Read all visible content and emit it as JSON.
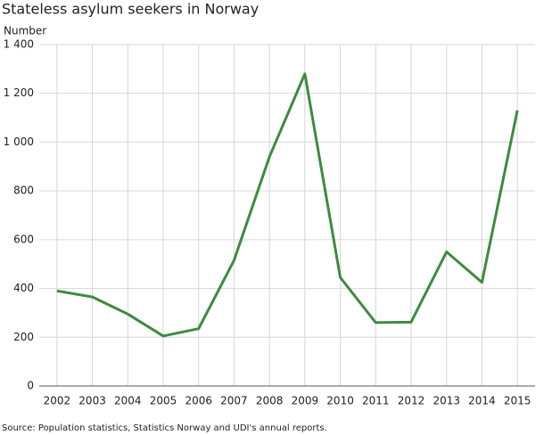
{
  "chart_data": {
    "type": "line",
    "title": "Stateless asylum seekers in Norway",
    "y_label": "Number",
    "source": "Source: Population statistics, Statistics Norway and UDI's annual reports.",
    "categories": [
      "2002",
      "2003",
      "2004",
      "2005",
      "2006",
      "2007",
      "2008",
      "2009",
      "2010",
      "2011",
      "2012",
      "2013",
      "2014",
      "2015"
    ],
    "values": [
      390,
      365,
      295,
      205,
      235,
      515,
      940,
      1280,
      445,
      260,
      262,
      550,
      425,
      1130
    ],
    "color": "#3d8b40",
    "ylim": [
      0,
      1400
    ],
    "yticks": [
      0,
      200,
      400,
      600,
      800,
      {
        "value": 1000,
        "label": "1 000"
      },
      {
        "value": 1200,
        "label": "1 200"
      },
      {
        "value": 1400,
        "label": "1 400"
      }
    ],
    "grid": true
  }
}
